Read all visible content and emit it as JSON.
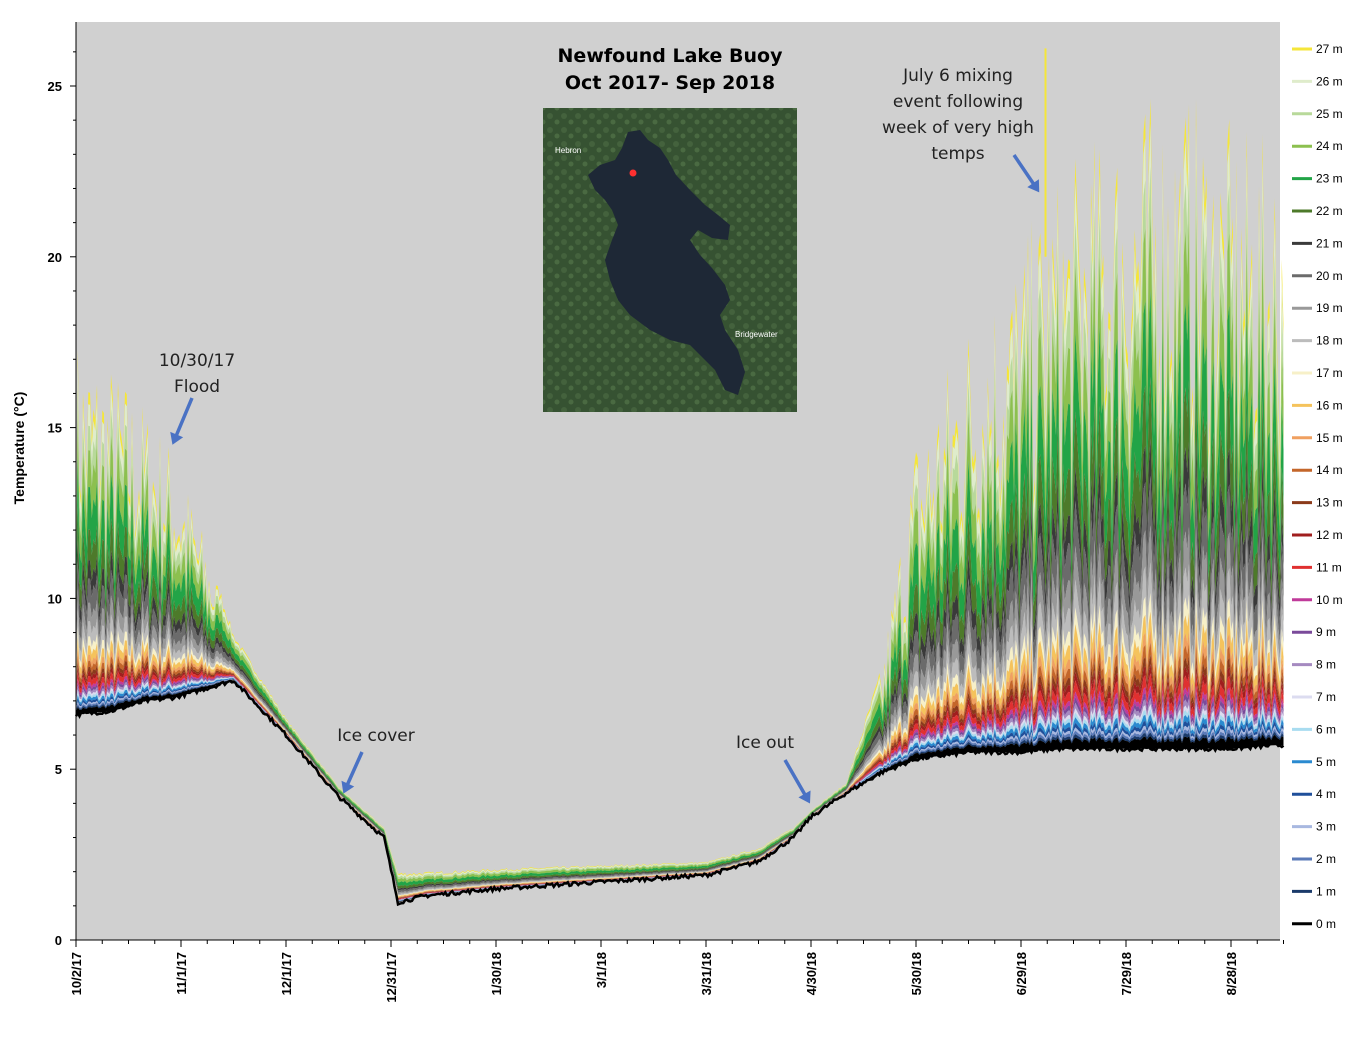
{
  "chart_data": {
    "type": "area",
    "title_lines": [
      "Newfound Lake Buoy",
      "Oct 2017- Sep 2018"
    ],
    "xlabel": "",
    "ylabel": "Temperature (°C)",
    "ylim": [
      0,
      27
    ],
    "y_ticks": [
      0,
      5,
      10,
      15,
      20,
      25
    ],
    "y_tick_labels": [
      "0",
      "5",
      "10",
      "15",
      "20",
      "25"
    ],
    "x_tick_labels": [
      "10/2/17",
      "11/1/17",
      "12/1/17",
      "12/31/17",
      "1/30/18",
      "3/1/18",
      "3/31/18",
      "4/30/18",
      "5/30/18",
      "6/29/18",
      "7/29/18",
      "8/28/18"
    ],
    "x_tick_days": [
      0,
      30,
      60,
      90,
      120,
      150,
      180,
      210,
      240,
      270,
      300,
      330
    ],
    "xlim_days": [
      0,
      345
    ],
    "grid": false,
    "plot_background": "#d0d0d0",
    "legend_position": "right",
    "legend": [
      {
        "label": "27 m",
        "color": "#f5e63a"
      },
      {
        "label": "26 m",
        "color": "#dfeccb"
      },
      {
        "label": "25 m",
        "color": "#b8d99a"
      },
      {
        "label": "24 m",
        "color": "#8cc04f"
      },
      {
        "label": "23 m",
        "color": "#22a447"
      },
      {
        "label": " 22 m",
        "color": "#4d7a2a"
      },
      {
        "label": "21 m",
        "color": "#3a3a3a"
      },
      {
        "label": "20 m",
        "color": "#6b6b6b"
      },
      {
        "label": "19 m",
        "color": "#999999"
      },
      {
        "label": "18 m",
        "color": "#bcbcbc"
      },
      {
        "label": "17 m",
        "color": "#f7f0c8"
      },
      {
        "label": "16 m",
        "color": "#f5c35c"
      },
      {
        "label": "15 m",
        "color": "#f0a060"
      },
      {
        "label": "14 m",
        "color": "#c4662a"
      },
      {
        "label": "13 m",
        "color": "#8b3a1a"
      },
      {
        "label": "12 m",
        "color": "#a01e1e"
      },
      {
        "label": "11 m",
        "color": "#e03030"
      },
      {
        "label": "10 m",
        "color": "#c03a9a"
      },
      {
        "label": "9 m",
        "color": "#7a4a9a"
      },
      {
        "label": "8 m",
        "color": "#a58ac0"
      },
      {
        "label": "7 m",
        "color": "#dcdcf0"
      },
      {
        "label": "6 m",
        "color": "#a8dcf0"
      },
      {
        "label": "5 m",
        "color": "#2a8ad0"
      },
      {
        "label": "4 m",
        "color": "#1f4f9a"
      },
      {
        "label": "3 m",
        "color": "#a8b8e0"
      },
      {
        "label": "2 m",
        "color": "#5a7ab8"
      },
      {
        "label": "1 m",
        "color": "#1a3a6a"
      },
      {
        "label": "0 m",
        "color": "#000000"
      }
    ],
    "series_envelope": {
      "description_days": [
        0,
        10,
        20,
        28,
        35,
        45,
        60,
        75,
        88,
        92,
        100,
        120,
        150,
        180,
        195,
        205,
        210,
        220,
        230,
        240,
        255,
        270,
        280,
        300,
        315,
        330,
        342
      ],
      "surface_max": [
        17.8,
        17.0,
        15.8,
        14.5,
        12.5,
        9.0,
        6.5,
        4.5,
        3.3,
        2.0,
        2.0,
        2.1,
        2.2,
        2.3,
        2.7,
        3.3,
        3.8,
        4.6,
        8.0,
        15.0,
        18.5,
        20.5,
        22.5,
        24.5,
        25.2,
        24.0,
        23.5
      ],
      "bottom_min": [
        6.6,
        6.7,
        7.0,
        7.1,
        7.3,
        7.6,
        6.0,
        4.2,
        3.0,
        1.1,
        1.3,
        1.5,
        1.7,
        1.9,
        2.3,
        3.0,
        3.6,
        4.3,
        4.9,
        5.3,
        5.5,
        5.5,
        5.6,
        5.6,
        5.6,
        5.6,
        5.7
      ]
    },
    "annotations": [
      {
        "lines": [
          "10/30/17",
          "Flood"
        ],
        "day": 28,
        "value": 14.5
      },
      {
        "lines": [
          "Ice cover"
        ],
        "day": 77,
        "value": 4.3
      },
      {
        "lines": [
          "Ice out"
        ],
        "day": 210,
        "value": 4.0
      },
      {
        "lines": [
          "July 6 mixing",
          "event following",
          "week of very high",
          "temps"
        ],
        "day": 277,
        "value": 21.5
      }
    ],
    "inset_map": {
      "labels": [
        "Hebron",
        "Bridgewater"
      ]
    }
  }
}
